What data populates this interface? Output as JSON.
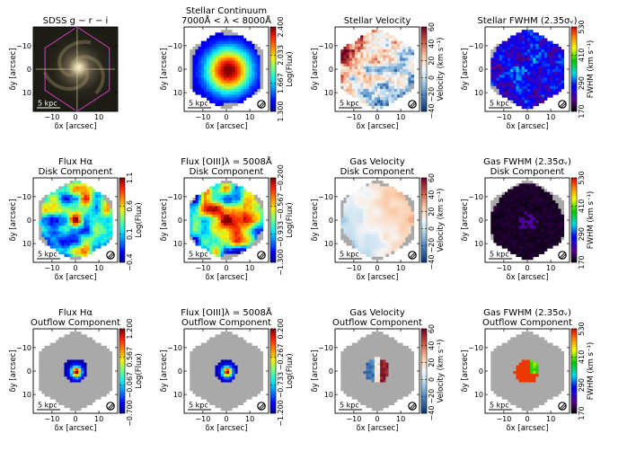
{
  "figure": {
    "rows": [
      {
        "panels": [
          {
            "id": "sdss",
            "kind": "image",
            "title": [
              "SDSS g − r − i"
            ],
            "colorbar": null,
            "xlabel": "δx [arcsec]",
            "ylabel": "δy [arcsec]",
            "scalebar": "5 kpc",
            "show_beam": false
          },
          {
            "id": "stellar-continuum",
            "kind": "map",
            "title": [
              "Stellar Continuum",
              "7000Å < λ < 8000Å"
            ],
            "colorbar": {
              "cmap": "jet",
              "label": "Log(Flux)",
              "ticks": [
                "1.300",
                "1.667",
                "2.033",
                "2.400"
              ]
            },
            "xlabel": "δx [arcsec]",
            "ylabel": "δy [arcsec]",
            "scalebar": "5 kpc",
            "show_beam": true,
            "pattern": "peak",
            "extent": 0.9,
            "peak_value": 1.0,
            "sigma": 0.5
          },
          {
            "id": "stellar-velocity",
            "kind": "map",
            "title": [
              "Stellar Velocity"
            ],
            "colorbar": {
              "cmap": "rdbu",
              "label": "Velocity (km s⁻¹)",
              "ticks": [
                "−40",
                "−20",
                "0",
                "20",
                "40",
                "60"
              ]
            },
            "xlabel": "δx [arcsec]",
            "ylabel": "δy [arcsec]",
            "scalebar": "5 kpc",
            "show_beam": true,
            "pattern": "noisy_velocity",
            "extent": 0.95,
            "peak_value": 0.5,
            "sigma": 0.5
          },
          {
            "id": "stellar-fwhm",
            "kind": "map",
            "title": [
              "Stellar FWHM (2.35σᵥ)"
            ],
            "colorbar": {
              "cmap": "rainbow",
              "label": "FWHM (km s⁻¹)",
              "ticks": [
                "170",
                "290",
                "410",
                "530"
              ]
            },
            "xlabel": "δx [arcsec]",
            "ylabel": "δy [arcsec]",
            "scalebar": "5 kpc",
            "show_beam": true,
            "pattern": "fwhm_noisy",
            "extent": 0.95,
            "peak_value": 0.1,
            "sigma": 0.5
          }
        ]
      },
      {
        "panels": [
          {
            "id": "flux-halpha-disk",
            "kind": "map",
            "title": [
              "Flux Hα",
              "Disk Component"
            ],
            "colorbar": {
              "cmap": "jet",
              "label": "Log(Flux)",
              "ticks": [
                "−0.4",
                "0.1",
                "0.6",
                "1.1"
              ]
            },
            "xlabel": "δx [arcsec]",
            "ylabel": "δy [arcsec]",
            "scalebar": "5 kpc",
            "show_beam": true,
            "pattern": "clumpy",
            "extent": 0.92,
            "peak_value": 0.75,
            "sigma": 0.5
          },
          {
            "id": "flux-oiii-disk",
            "kind": "map",
            "title": [
              "Flux [OIII]λ = 5008Å",
              "Disk Component"
            ],
            "colorbar": {
              "cmap": "jet",
              "label": "Log(Flux)",
              "ticks": [
                "−1.300",
                "−0.933",
                "−0.567",
                "−0.200"
              ]
            },
            "xlabel": "δx [arcsec]",
            "ylabel": "δy [arcsec]",
            "scalebar": "5 kpc",
            "show_beam": true,
            "pattern": "clumpy",
            "extent": 0.92,
            "peak_value": 0.7,
            "sigma": 0.5
          },
          {
            "id": "gas-velocity-disk",
            "kind": "map",
            "title": [
              "Gas Velocity",
              "Disk Component"
            ],
            "colorbar": {
              "cmap": "rdbu",
              "label": "Velocity (km s⁻¹)",
              "ticks": [
                "−40",
                "−20",
                "0",
                "20",
                "40",
                "60"
              ]
            },
            "xlabel": "δx [arcsec]",
            "ylabel": "δy [arcsec]",
            "scalebar": "5 kpc",
            "show_beam": true,
            "pattern": "smooth_velocity",
            "extent": 0.9,
            "peak_value": 0.5,
            "sigma": 0.5
          },
          {
            "id": "gas-fwhm-disk",
            "kind": "map",
            "title": [
              "Gas FWHM (2.35σᵥ)",
              "Disk Component"
            ],
            "colorbar": {
              "cmap": "rainbow",
              "label": "FWHM (km s⁻¹)",
              "ticks": [
                "170",
                "290",
                "410",
                "530"
              ]
            },
            "xlabel": "δx [arcsec]",
            "ylabel": "δy [arcsec]",
            "scalebar": "5 kpc",
            "show_beam": true,
            "pattern": "black_disk",
            "extent": 0.9,
            "peak_value": 0.05,
            "sigma": 0.5
          }
        ]
      },
      {
        "panels": [
          {
            "id": "flux-halpha-outflow",
            "kind": "map",
            "title": [
              "Flux Hα",
              "Outflow Component"
            ],
            "colorbar": {
              "cmap": "jet",
              "label": "Log(Flux)",
              "ticks": [
                "−0.700",
                "−0.067",
                "0.567",
                "1.200"
              ]
            },
            "xlabel": "δx [arcsec]",
            "ylabel": "δy [arcsec]",
            "scalebar": "5 kpc",
            "show_beam": true,
            "pattern": "peak",
            "extent": 0.28,
            "peak_value": 1.0,
            "sigma": 0.12
          },
          {
            "id": "flux-oiii-outflow",
            "kind": "map",
            "title": [
              "Flux [OIII]λ = 5008Å",
              "Outflow Component"
            ],
            "colorbar": {
              "cmap": "jet",
              "label": "Log(Flux)",
              "ticks": [
                "−1.200",
                "−0.733",
                "−0.267",
                "0.200"
              ]
            },
            "xlabel": "δx [arcsec]",
            "ylabel": "δy [arcsec]",
            "scalebar": "5 kpc",
            "show_beam": true,
            "pattern": "peak",
            "extent": 0.28,
            "peak_value": 0.95,
            "sigma": 0.12
          },
          {
            "id": "gas-velocity-outflow",
            "kind": "map",
            "title": [
              "Gas Velocity",
              "Outflow Component"
            ],
            "colorbar": {
              "cmap": "rdbu",
              "label": "Velocity (km s⁻¹)",
              "ticks": [
                "−40",
                "−20",
                "0",
                "20",
                "40",
                "60"
              ]
            },
            "xlabel": "δx [arcsec]",
            "ylabel": "δy [arcsec]",
            "scalebar": "5 kpc",
            "show_beam": true,
            "pattern": "outflow_velocity",
            "extent": 0.3,
            "peak_value": 0.5,
            "sigma": 0.2
          },
          {
            "id": "gas-fwhm-outflow",
            "kind": "map",
            "title": [
              "Gas FWHM (2.35σᵥ)",
              "Outflow Component"
            ],
            "colorbar": {
              "cmap": "rainbow",
              "label": "FWHM (km s⁻¹)",
              "ticks": [
                "170",
                "290",
                "410",
                "530"
              ]
            },
            "xlabel": "δx [arcsec]",
            "ylabel": "δy [arcsec]",
            "scalebar": "5 kpc",
            "show_beam": true,
            "pattern": "outflow_fwhm",
            "extent": 0.3,
            "peak_value": 0.95,
            "sigma": 0.2
          }
        ]
      }
    ]
  },
  "chart_data": {
    "type": "heatmap",
    "layout": "3 x 4 grid of spatially resolved IFU maps",
    "x_axis": {
      "label": "δx [arcsec]",
      "range": [
        -18,
        18
      ],
      "ticks": [
        -10,
        0,
        10
      ]
    },
    "y_axis": {
      "label": "δy [arcsec]",
      "range": [
        -18,
        18
      ],
      "ticks": [
        -10,
        0,
        10
      ],
      "inverted": true
    },
    "panels": [
      {
        "title": "SDSS g − r − i",
        "content": "optical image"
      },
      {
        "title": "Stellar Continuum 7000Å < λ < 8000Å",
        "colorbar_label": "Log(Flux)",
        "colorbar_range": [
          1.3,
          2.4
        ]
      },
      {
        "title": "Stellar Velocity",
        "colorbar_label": "Velocity (km s⁻¹)",
        "colorbar_range": [
          -40,
          60
        ]
      },
      {
        "title": "Stellar FWHM (2.35σᵥ)",
        "colorbar_label": "FWHM (km s⁻¹)",
        "colorbar_range": [
          170,
          530
        ]
      },
      {
        "title": "Flux Hα Disk Component",
        "colorbar_label": "Log(Flux)",
        "colorbar_range": [
          -0.4,
          1.1
        ]
      },
      {
        "title": "Flux [OIII]λ = 5008Å Disk Component",
        "colorbar_label": "Log(Flux)",
        "colorbar_range": [
          -1.3,
          -0.2
        ]
      },
      {
        "title": "Gas Velocity Disk Component",
        "colorbar_label": "Velocity (km s⁻¹)",
        "colorbar_range": [
          -40,
          60
        ]
      },
      {
        "title": "Gas FWHM (2.35σᵥ) Disk Component",
        "colorbar_label": "FWHM (km s⁻¹)",
        "colorbar_range": [
          170,
          530
        ]
      },
      {
        "title": "Flux Hα Outflow Component",
        "colorbar_label": "Log(Flux)",
        "colorbar_range": [
          -0.7,
          1.2
        ]
      },
      {
        "title": "Flux [OIII]λ = 5008Å Outflow Component",
        "colorbar_label": "Log(Flux)",
        "colorbar_range": [
          -1.2,
          0.2
        ]
      },
      {
        "title": "Gas Velocity Outflow Component",
        "colorbar_label": "Velocity (km s⁻¹)",
        "colorbar_range": [
          -40,
          60
        ]
      },
      {
        "title": "Gas FWHM (2.35σᵥ) Outflow Component",
        "colorbar_label": "FWHM (km s⁻¹)",
        "colorbar_range": [
          170,
          530
        ]
      }
    ],
    "scalebar": "5 kpc"
  },
  "colors": {
    "background_field": "#a9a9a9",
    "sdss_background": "#1c1c14",
    "hexagon_outline": "#d040c0",
    "crosshair": "#d8d8a0"
  }
}
